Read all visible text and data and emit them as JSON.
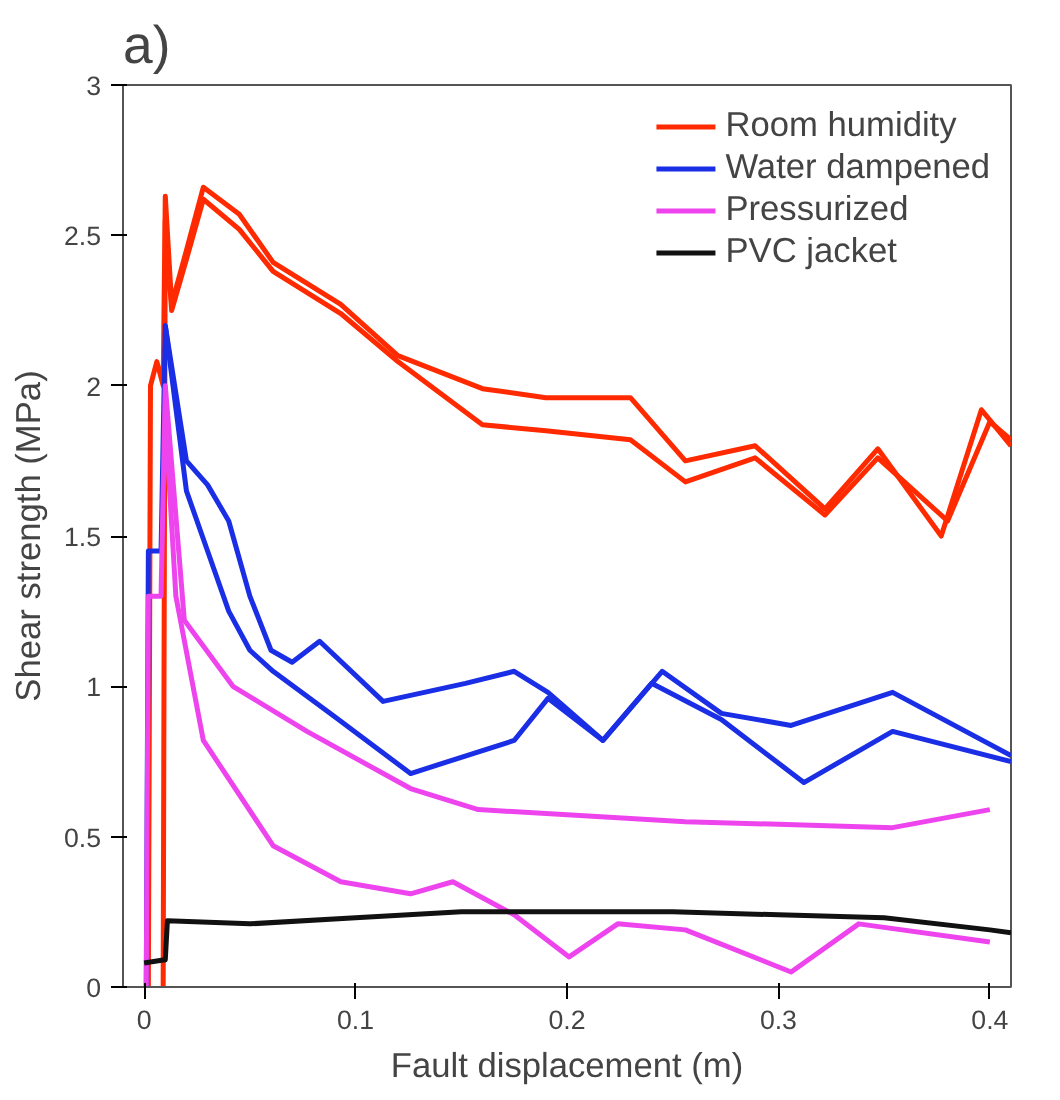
{
  "chart_data": {
    "type": "line",
    "title": "a)",
    "xlabel": "Fault displacement (m)",
    "ylabel": "Shear strength (MPa)",
    "xlim": [
      -0.01,
      0.41
    ],
    "ylim": [
      0,
      3
    ],
    "xticks": [
      0,
      0.1,
      0.2,
      0.3,
      0.4
    ],
    "yticks": [
      0,
      0.5,
      1,
      1.5,
      2,
      2.5,
      3
    ],
    "legend": "top right",
    "series": [
      {
        "name": "Room humidity",
        "color": "#ff2a00",
        "x": [
          0.002,
          0.003,
          0.006,
          0.009,
          0.01,
          0.013,
          0.02,
          0.028,
          0.045,
          0.061,
          0.093,
          0.12,
          0.16,
          0.19,
          0.23,
          0.256,
          0.289,
          0.322,
          0.347,
          0.377,
          0.396,
          0.41
        ],
        "values": [
          0,
          2.0,
          2.08,
          2.0,
          2.63,
          2.27,
          2.45,
          2.66,
          2.57,
          2.41,
          2.27,
          2.1,
          1.99,
          1.96,
          1.96,
          1.75,
          1.8,
          1.59,
          1.79,
          1.5,
          1.92,
          1.8
        ]
      },
      {
        "color": "#ff2a00",
        "x": [
          0.009,
          0.01,
          0.013,
          0.02,
          0.028,
          0.045,
          0.061,
          0.093,
          0.12,
          0.16,
          0.19,
          0.23,
          0.256,
          0.289,
          0.322,
          0.347,
          0.38,
          0.4,
          0.41
        ],
        "values": [
          0,
          2.55,
          2.25,
          2.42,
          2.62,
          2.52,
          2.38,
          2.24,
          2.08,
          1.87,
          1.85,
          1.82,
          1.68,
          1.76,
          1.57,
          1.76,
          1.55,
          1.88,
          1.82
        ]
      },
      {
        "name": "Water dampened",
        "color": "#1a2ee6",
        "x": [
          0.001,
          0.002,
          0.008,
          0.01,
          0.02,
          0.03,
          0.04,
          0.05,
          0.06,
          0.07,
          0.083,
          0.113,
          0.152,
          0.175,
          0.191,
          0.217,
          0.245,
          0.273,
          0.306,
          0.354,
          0.41
        ],
        "values": [
          0,
          1.45,
          1.45,
          2.2,
          1.75,
          1.67,
          1.55,
          1.3,
          1.12,
          1.08,
          1.15,
          0.95,
          1.01,
          1.05,
          0.98,
          0.82,
          1.05,
          0.91,
          0.87,
          0.98,
          0.77
        ]
      },
      {
        "color": "#1a2ee6",
        "x": [
          0.01,
          0.02,
          0.03,
          0.04,
          0.05,
          0.061,
          0.09,
          0.126,
          0.175,
          0.191,
          0.217,
          0.24,
          0.273,
          0.312,
          0.354,
          0.41
        ],
        "values": [
          2.2,
          1.65,
          1.45,
          1.25,
          1.12,
          1.05,
          0.9,
          0.71,
          0.82,
          0.96,
          0.82,
          1.01,
          0.89,
          0.68,
          0.85,
          0.75
        ]
      },
      {
        "name": "Pressurized",
        "color": "#ee44ee",
        "x": [
          0.001,
          0.002,
          0.008,
          0.01,
          0.019,
          0.042,
          0.077,
          0.126,
          0.158,
          0.256,
          0.354,
          0.4
        ],
        "values": [
          0,
          1.3,
          1.3,
          2.0,
          1.22,
          1.0,
          0.85,
          0.66,
          0.59,
          0.55,
          0.53,
          0.59
        ]
      },
      {
        "color": "#ee44ee",
        "x": [
          0.01,
          0.015,
          0.028,
          0.061,
          0.093,
          0.126,
          0.146,
          0.175,
          0.201,
          0.224,
          0.256,
          0.306,
          0.338,
          0.4
        ],
        "values": [
          1.9,
          1.3,
          0.82,
          0.47,
          0.35,
          0.31,
          0.35,
          0.24,
          0.1,
          0.21,
          0.19,
          0.05,
          0.21,
          0.15
        ]
      },
      {
        "name": "PVC jacket",
        "color": "#111111",
        "x": [
          0.0,
          0.009,
          0.01,
          0.011,
          0.05,
          0.1,
          0.15,
          0.2,
          0.25,
          0.3,
          0.35,
          0.4,
          0.41
        ],
        "values": [
          0.08,
          0.09,
          0.09,
          0.22,
          0.21,
          0.23,
          0.25,
          0.25,
          0.25,
          0.24,
          0.23,
          0.19,
          0.18
        ]
      }
    ]
  }
}
